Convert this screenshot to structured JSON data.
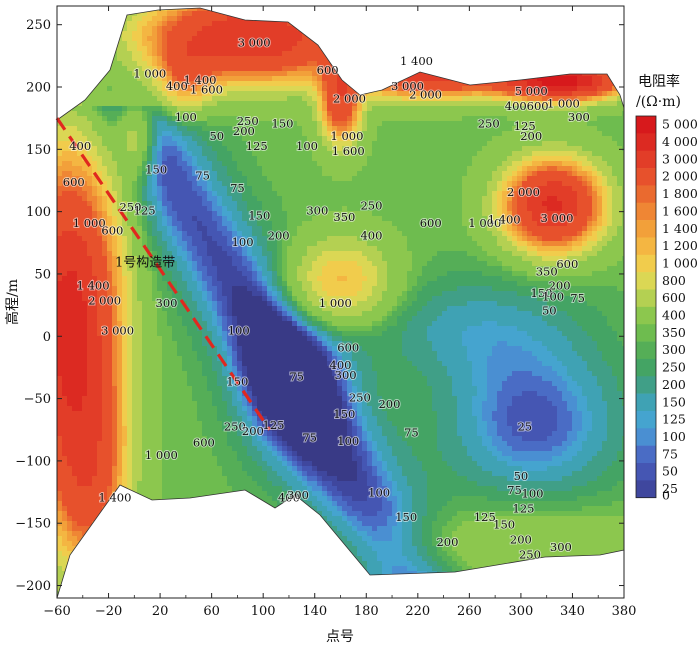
{
  "chart_data": {
    "type": "heatmap",
    "subtype": "filled-contour",
    "xlabel": "点号",
    "ylabel": "高程/m",
    "xlim": [
      -60,
      380
    ],
    "ylim": [
      -210,
      265
    ],
    "x_ticks": [
      "−60",
      "−20",
      "20",
      "60",
      "100",
      "140",
      "180",
      "220",
      "260",
      "300",
      "340",
      "380"
    ],
    "y_ticks": [
      "250",
      "200",
      "150",
      "100",
      "50",
      "0",
      "−50",
      "−100",
      "−150",
      "−200"
    ],
    "colorbar": {
      "title_line1": "电阻率",
      "title_line2": "/(Ω·m)",
      "levels": [
        "5 000",
        "4 000",
        "3 000",
        "2 000",
        "1 800",
        "1 600",
        "1 400",
        "1 200",
        "1 000",
        "800",
        "600",
        "400",
        "350",
        "300",
        "250",
        "200",
        "150",
        "125",
        "100",
        "75",
        "50",
        "25",
        "0"
      ],
      "colors": [
        "#d7191c",
        "#dc2a22",
        "#e23d28",
        "#e7512c",
        "#ea6a2f",
        "#ef8634",
        "#f2a03a",
        "#f4b642",
        "#f1cc4c",
        "#dbd754",
        "#b4d052",
        "#8cc74e",
        "#6ebc4f",
        "#55ae57",
        "#44a464",
        "#409f87",
        "#3fa2b4",
        "#45a4cf",
        "#4a8fd2",
        "#4a6cc5",
        "#4556b3",
        "#3f479e",
        "#393a86"
      ]
    },
    "annotation": "1号构造带",
    "structure_line": [
      [
        -60,
        175
      ],
      [
        105,
        -75
      ]
    ],
    "grid": false,
    "legend": "colorbar-right",
    "contour_labels": [
      {
        "text": "3 000",
        "x": 93,
        "y": 235
      },
      {
        "text": "1 000",
        "x": 12,
        "y": 210
      },
      {
        "text": "1 400",
        "x": 51,
        "y": 205
      },
      {
        "text": "400",
        "x": 33,
        "y": 200
      },
      {
        "text": "1 600",
        "x": 56,
        "y": 197
      },
      {
        "text": "600",
        "x": 150,
        "y": 213
      },
      {
        "text": "2 000",
        "x": 167,
        "y": 190
      },
      {
        "text": "1 400",
        "x": 219,
        "y": 220
      },
      {
        "text": "3 000",
        "x": 212,
        "y": 200
      },
      {
        "text": "2 000",
        "x": 226,
        "y": 193
      },
      {
        "text": "5 000",
        "x": 308,
        "y": 196
      },
      {
        "text": "400",
        "x": 296,
        "y": 184
      },
      {
        "text": "600",
        "x": 313,
        "y": 184
      },
      {
        "text": "1 000",
        "x": 333,
        "y": 186
      },
      {
        "text": "300",
        "x": 345,
        "y": 175
      },
      {
        "text": "125",
        "x": 303,
        "y": 168
      },
      {
        "text": "200",
        "x": 308,
        "y": 160
      },
      {
        "text": "250",
        "x": 275,
        "y": 170
      },
      {
        "text": "1 000",
        "x": 165,
        "y": 160
      },
      {
        "text": "1 600",
        "x": 166,
        "y": 148
      },
      {
        "text": "100",
        "x": 134,
        "y": 152
      },
      {
        "text": "150",
        "x": 115,
        "y": 170
      },
      {
        "text": "250",
        "x": 88,
        "y": 172
      },
      {
        "text": "200",
        "x": 85,
        "y": 164
      },
      {
        "text": "125",
        "x": 95,
        "y": 152
      },
      {
        "text": "100",
        "x": 40,
        "y": 175
      },
      {
        "text": "50",
        "x": 64,
        "y": 160
      },
      {
        "text": "400",
        "x": -42,
        "y": 152
      },
      {
        "text": "600",
        "x": -47,
        "y": 123
      },
      {
        "text": "150",
        "x": 17,
        "y": 133
      },
      {
        "text": "75",
        "x": 53,
        "y": 128
      },
      {
        "text": "75",
        "x": 80,
        "y": 118
      },
      {
        "text": "250",
        "x": -3,
        "y": 103
      },
      {
        "text": "125",
        "x": 8,
        "y": 100
      },
      {
        "text": "1 000",
        "x": -35,
        "y": 90
      },
      {
        "text": "600",
        "x": -17,
        "y": 84
      },
      {
        "text": "100",
        "x": 84,
        "y": 75
      },
      {
        "text": "150",
        "x": 97,
        "y": 96
      },
      {
        "text": "200",
        "x": 112,
        "y": 80
      },
      {
        "text": "300",
        "x": 142,
        "y": 100
      },
      {
        "text": "350",
        "x": 163,
        "y": 95
      },
      {
        "text": "250",
        "x": 184,
        "y": 104
      },
      {
        "text": "400",
        "x": 184,
        "y": 80
      },
      {
        "text": "600",
        "x": 230,
        "y": 90
      },
      {
        "text": "1 000",
        "x": 272,
        "y": 90
      },
      {
        "text": "1 400",
        "x": 287,
        "y": 93
      },
      {
        "text": "2 000",
        "x": 302,
        "y": 115
      },
      {
        "text": "3 000",
        "x": 328,
        "y": 94
      },
      {
        "text": "350",
        "x": 320,
        "y": 51
      },
      {
        "text": "600",
        "x": 336,
        "y": 57
      },
      {
        "text": "200",
        "x": 330,
        "y": 40
      },
      {
        "text": "150",
        "x": 316,
        "y": 34
      },
      {
        "text": "100",
        "x": 325,
        "y": 31
      },
      {
        "text": "75",
        "x": 344,
        "y": 30
      },
      {
        "text": "50",
        "x": 322,
        "y": 20
      },
      {
        "text": "1 400",
        "x": -32,
        "y": 40
      },
      {
        "text": "2 000",
        "x": -23,
        "y": 28
      },
      {
        "text": "3 000",
        "x": -13,
        "y": 4
      },
      {
        "text": "300",
        "x": 25,
        "y": 26
      },
      {
        "text": "1 000",
        "x": 156,
        "y": 26
      },
      {
        "text": "100",
        "x": 81,
        "y": 4
      },
      {
        "text": "75",
        "x": 126,
        "y": -33
      },
      {
        "text": "600",
        "x": 166,
        "y": -10
      },
      {
        "text": "150",
        "x": 80,
        "y": -37
      },
      {
        "text": "400",
        "x": 160,
        "y": -24
      },
      {
        "text": "300",
        "x": 164,
        "y": -32
      },
      {
        "text": "250",
        "x": 175,
        "y": -50
      },
      {
        "text": "200",
        "x": 198,
        "y": -55
      },
      {
        "text": "150",
        "x": 163,
        "y": -63
      },
      {
        "text": "100",
        "x": 166,
        "y": -85
      },
      {
        "text": "75",
        "x": 136,
        "y": -82
      },
      {
        "text": "75",
        "x": 215,
        "y": -78
      },
      {
        "text": "25",
        "x": 303,
        "y": -73
      },
      {
        "text": "250",
        "x": 78,
        "y": -73
      },
      {
        "text": "200",
        "x": 92,
        "y": -77
      },
      {
        "text": "125",
        "x": 108,
        "y": -72
      },
      {
        "text": "600",
        "x": 54,
        "y": -86
      },
      {
        "text": "1 000",
        "x": 21,
        "y": -96
      },
      {
        "text": "1 400",
        "x": -15,
        "y": -130
      },
      {
        "text": "400",
        "x": 120,
        "y": -130
      },
      {
        "text": "300",
        "x": 127,
        "y": -128
      },
      {
        "text": "100",
        "x": 190,
        "y": -126
      },
      {
        "text": "150",
        "x": 211,
        "y": -146
      },
      {
        "text": "200",
        "x": 243,
        "y": -166
      },
      {
        "text": "125",
        "x": 272,
        "y": -146
      },
      {
        "text": "150",
        "x": 287,
        "y": -152
      },
      {
        "text": "125",
        "x": 302,
        "y": -139
      },
      {
        "text": "100",
        "x": 309,
        "y": -127
      },
      {
        "text": "75",
        "x": 295,
        "y": -124
      },
      {
        "text": "50",
        "x": 300,
        "y": -113
      },
      {
        "text": "200",
        "x": 300,
        "y": -164
      },
      {
        "text": "250",
        "x": 307,
        "y": -176
      },
      {
        "text": "300",
        "x": 331,
        "y": -170
      }
    ]
  }
}
